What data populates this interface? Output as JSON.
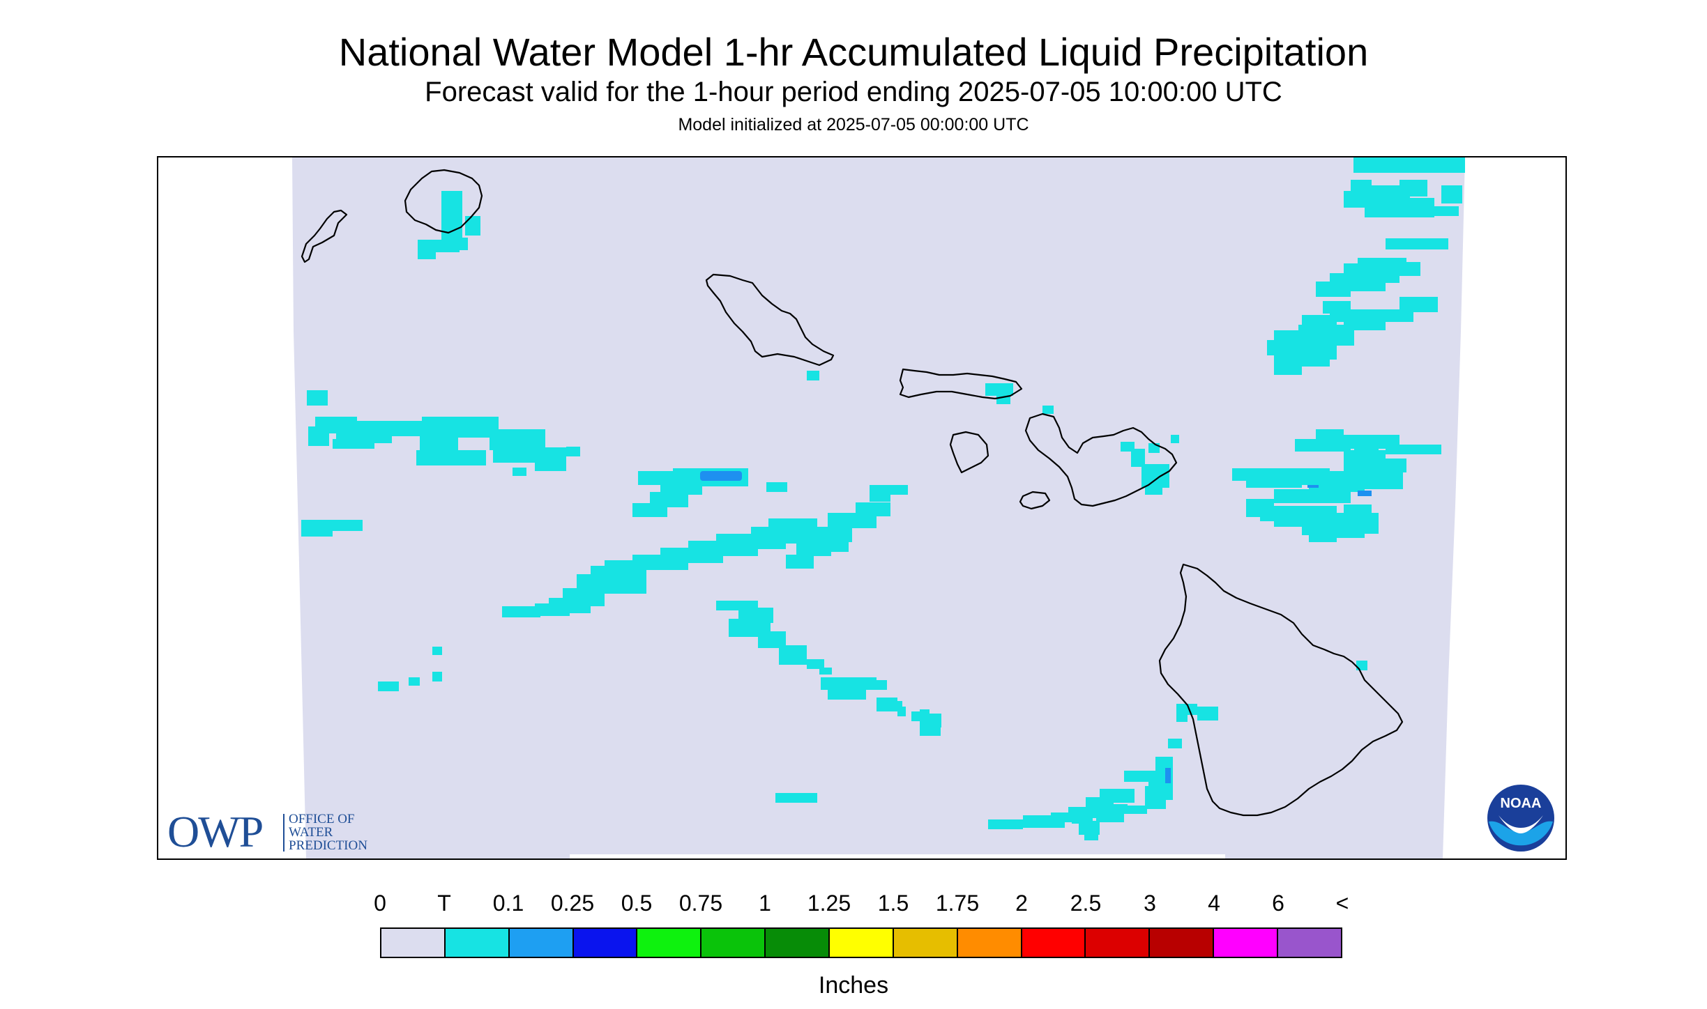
{
  "title": "National Water Model 1-hr Accumulated Liquid Precipitation",
  "subtitle": "Forecast valid for the 1-hour period ending 2025-07-05 10:00:00 UTC",
  "init_line": "Model initialized at 2025-07-05 00:00:00 UTC",
  "map": {
    "region": "Hawaiian Islands",
    "background_color": "#dcddef",
    "coastline_color": "#000000",
    "trace_color": "#17e3e3",
    "light_color": "#1e90f0"
  },
  "legend": {
    "labels": [
      "0",
      "T",
      "0.1",
      "0.25",
      "0.5",
      "0.75",
      "1",
      "1.25",
      "1.5",
      "1.75",
      "2",
      "2.5",
      "3",
      "4",
      "6",
      "<"
    ],
    "colors": [
      "#dcddef",
      "#17e3e3",
      "#1e9ff2",
      "#0a14ee",
      "#0ef20e",
      "#0ac30a",
      "#078c07",
      "#ffff00",
      "#e6be00",
      "#ff8c00",
      "#ff0000",
      "#dc0000",
      "#b80000",
      "#ff00ff",
      "#9955cc"
    ],
    "units": "Inches"
  },
  "logos": {
    "owp_letters": "OWP",
    "owp_line1": "OFFICE OF",
    "owp_line2": "WATER",
    "owp_line3": "PREDICTION",
    "noaa_text": "NOAA",
    "noaa_outer": "#1a3f9a",
    "noaa_inner": "#1ca3e8"
  }
}
